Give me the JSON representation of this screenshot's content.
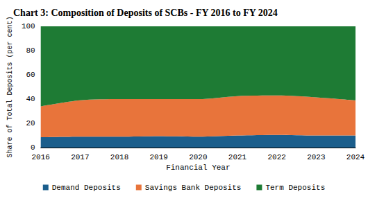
{
  "chart_data": {
    "type": "area",
    "title": "Chart 3: Composition of Deposits of SCBs - FY 2016 to FY 2024",
    "x_label": "Financial Year",
    "y_label": "Share of Total Deposits (per cent)",
    "categories": [
      "2016",
      "2017",
      "2018",
      "2019",
      "2020",
      "2021",
      "2022",
      "2023",
      "2024"
    ],
    "series": [
      {
        "name": "Demand Deposits",
        "color": "#1b5e8c",
        "values": [
          8.5,
          9,
          9,
          9.5,
          9,
          10,
          10.5,
          10,
          10
        ]
      },
      {
        "name": "Savings Bank Deposits",
        "color": "#e8743b",
        "values": [
          25.5,
          30,
          31,
          30.5,
          31,
          32.5,
          32.5,
          31.5,
          29
        ]
      },
      {
        "name": "Term Deposits",
        "color": "#1e7b34",
        "values": [
          66,
          61,
          60,
          60,
          60,
          57.5,
          57,
          58.5,
          61
        ]
      }
    ],
    "ylim": [
      0,
      100
    ],
    "yticks": [
      0,
      20,
      40,
      60,
      80,
      100
    ],
    "stacked": true,
    "grid": false,
    "legend": "bottom"
  }
}
